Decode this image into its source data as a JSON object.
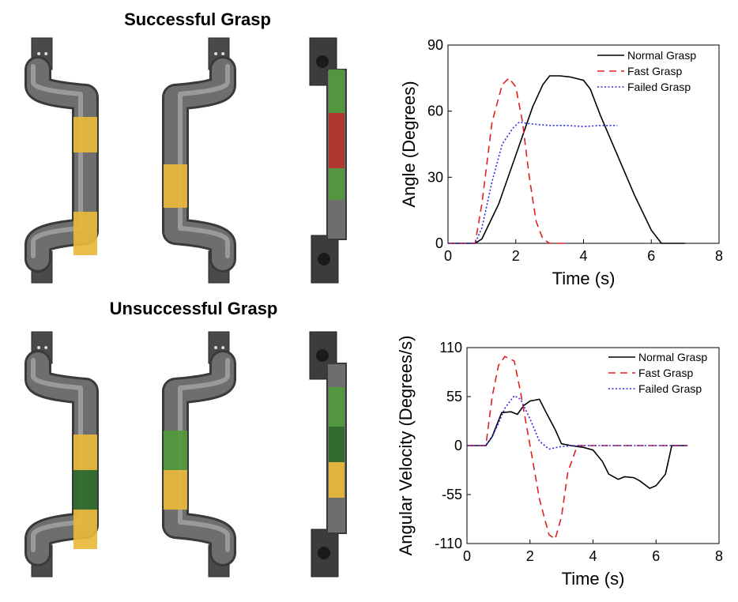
{
  "figure": {
    "titles": {
      "top": "Successful Grasp",
      "bottom": "Unsuccessful Grasp"
    },
    "colors": {
      "normal": "#000000",
      "fast": "#e02020",
      "failed": "#2a2ae0",
      "handle": "#6e6e6e",
      "handle_dark": "#3a3a3a",
      "tape_yellow": "#e8b838",
      "tape_green": "#4f9a3c",
      "tape_red": "#b5322a",
      "tape_dgreen": "#2f6a2a"
    }
  },
  "chart_data": [
    {
      "type": "line",
      "xlabel": "Time (s)",
      "ylabel": "Angle (Degrees)",
      "xlim": [
        0,
        8
      ],
      "ylim": [
        0,
        90
      ],
      "xticks": [
        0,
        2,
        4,
        6,
        8
      ],
      "yticks": [
        0,
        30,
        60,
        90
      ],
      "legend_position": "top-right",
      "series": [
        {
          "name": "Normal Grasp",
          "style": "solid",
          "color": "#000000",
          "x": [
            0,
            0.8,
            1.0,
            1.5,
            2.0,
            2.5,
            2.8,
            3.0,
            3.3,
            3.6,
            4.0,
            4.2,
            4.5,
            5.0,
            5.5,
            6.0,
            6.3,
            6.5,
            7.0
          ],
          "y": [
            0,
            0,
            2,
            18,
            40,
            62,
            72,
            76,
            76,
            75.5,
            74,
            70,
            58,
            40,
            22,
            6,
            0,
            0,
            0
          ]
        },
        {
          "name": "Fast Grasp",
          "style": "dashed",
          "color": "#e02020",
          "x": [
            0,
            0.8,
            1.0,
            1.3,
            1.6,
            1.8,
            2.0,
            2.2,
            2.4,
            2.6,
            2.8,
            3.0,
            3.5
          ],
          "y": [
            0,
            0,
            18,
            55,
            72,
            75,
            71,
            55,
            30,
            10,
            2,
            0,
            0
          ]
        },
        {
          "name": "Failed Grasp",
          "style": "dotted",
          "color": "#2a2ae0",
          "x": [
            0,
            0.8,
            1.0,
            1.3,
            1.6,
            1.9,
            2.1,
            2.3,
            2.6,
            3.0,
            3.5,
            4.0,
            4.5,
            5.0
          ],
          "y": [
            0,
            0,
            7,
            28,
            45,
            52,
            55,
            54.5,
            54,
            53.5,
            53.5,
            53,
            53.5,
            53.5
          ]
        }
      ]
    },
    {
      "type": "line",
      "xlabel": "Time (s)",
      "ylabel": "Angular Velocity (Degrees/s)",
      "xlim": [
        0,
        8
      ],
      "ylim": [
        -110,
        110
      ],
      "xticks": [
        0,
        2,
        4,
        6,
        8
      ],
      "yticks": [
        -110,
        -55,
        0,
        55,
        110
      ],
      "legend_position": "top-right",
      "series": [
        {
          "name": "Normal Grasp",
          "style": "solid",
          "color": "#000000",
          "x": [
            0,
            0.6,
            0.8,
            1.1,
            1.4,
            1.6,
            1.8,
            2.0,
            2.3,
            2.5,
            2.8,
            3.0,
            3.3,
            3.7,
            4.0,
            4.3,
            4.5,
            4.8,
            5.0,
            5.3,
            5.5,
            5.8,
            6.0,
            6.3,
            6.5,
            7.0
          ],
          "y": [
            0,
            0,
            10,
            37,
            38,
            35,
            45,
            50,
            52,
            38,
            18,
            2,
            0,
            -2,
            -5,
            -18,
            -32,
            -38,
            -35,
            -36,
            -40,
            -48,
            -45,
            -32,
            0,
            0
          ]
        },
        {
          "name": "Fast Grasp",
          "style": "dashed",
          "color": "#e02020",
          "x": [
            0,
            0.6,
            0.8,
            1.0,
            1.2,
            1.5,
            1.7,
            2.0,
            2.3,
            2.6,
            2.8,
            3.0,
            3.2,
            3.5,
            4.0,
            7.0
          ],
          "y": [
            0,
            0,
            55,
            90,
            100,
            95,
            60,
            0,
            -60,
            -100,
            -105,
            -80,
            -30,
            0,
            0,
            0
          ]
        },
        {
          "name": "Failed Grasp",
          "style": "dotted",
          "color": "#2a2ae0",
          "x": [
            0,
            0.6,
            0.8,
            1.0,
            1.2,
            1.5,
            1.7,
            2.0,
            2.3,
            2.6,
            3.0,
            3.5,
            4.0,
            4.5,
            5.0,
            7.0
          ],
          "y": [
            0,
            0,
            10,
            25,
            42,
            56,
            52,
            30,
            5,
            -4,
            -1,
            0,
            0,
            0,
            0,
            0
          ]
        }
      ]
    }
  ]
}
